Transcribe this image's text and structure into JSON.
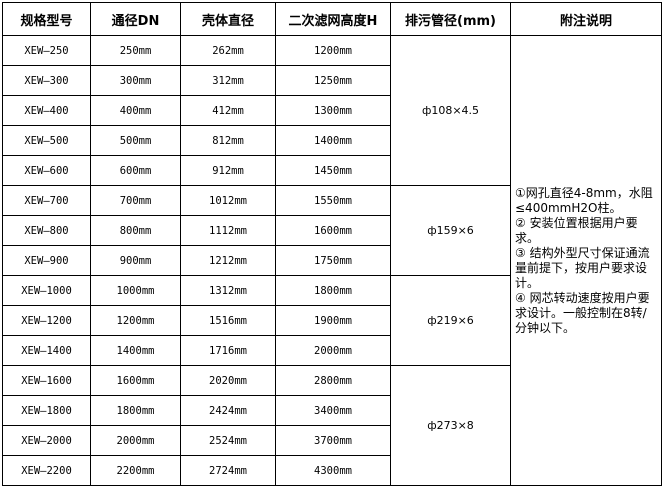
{
  "headers": [
    "规格型号",
    "通径DN",
    "壳体直径",
    "二次滤网高度H",
    "排污管径(mm)",
    "附注说明"
  ],
  "rows": [
    [
      "XEW—250",
      "250mm",
      "262mm",
      "1200mm"
    ],
    [
      "XEW—300",
      "300mm",
      "312mm",
      "1250mm"
    ],
    [
      "XEW—400",
      "400mm",
      "412mm",
      "1300mm"
    ],
    [
      "XEW—500",
      "500mm",
      "812mm",
      "1400mm"
    ],
    [
      "XEW—600",
      "600mm",
      "912mm",
      "1450mm"
    ],
    [
      "XEW—700",
      "700mm",
      "1012mm",
      "1550mm"
    ],
    [
      "XEW—800",
      "800mm",
      "1112mm",
      "1600mm"
    ],
    [
      "XEW—900",
      "900mm",
      "1212mm",
      "1750mm"
    ],
    [
      "XEW—1000",
      "1000mm",
      "1312mm",
      "1800mm"
    ],
    [
      "XEW—1200",
      "1200mm",
      "1516mm",
      "1900mm"
    ],
    [
      "XEW—1400",
      "1400mm",
      "1716mm",
      "2000mm"
    ],
    [
      "XEW—1600",
      "1600mm",
      "2020mm",
      "2800mm"
    ],
    [
      "XEW—1800",
      "1800mm",
      "2424mm",
      "3400mm"
    ],
    [
      "XEW—2000",
      "2000mm",
      "2524mm",
      "3700mm"
    ],
    [
      "XEW—2200",
      "2200mm",
      "2724mm",
      "4300mm"
    ]
  ],
  "pipe_groups": [
    {
      "label": "ф108×4.5",
      "span": 5
    },
    {
      "label": "ф159×6",
      "span": 3
    },
    {
      "label": "ф219×6",
      "span": 3
    },
    {
      "label": "ф273×8",
      "span": 4
    }
  ],
  "notes": [
    "①网孔直径4-8mm，水阻≤400mmH2O柱。",
    "② 安装位置根据用户要求。",
    "③ 结构外型尺寸保证通流量前提下，按用户要求设计。",
    "④ 网芯转动速度按用户要求设计。一般控制在8转/分钟以下。"
  ]
}
